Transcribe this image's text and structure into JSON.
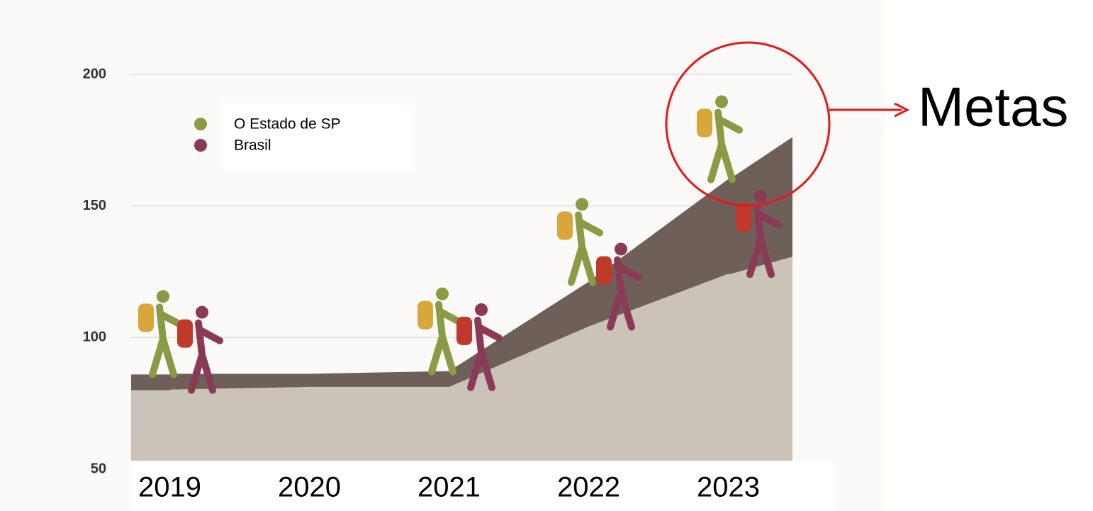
{
  "chart_data": {
    "type": "area",
    "categories": [
      "2019",
      "2020",
      "2021",
      "2022",
      "2023"
    ],
    "series": [
      {
        "name": "O Estado de SP",
        "color": "#8a9a45",
        "values": [
          86,
          86,
          87,
          121,
          160
        ]
      },
      {
        "name": "Brasil",
        "color": "#8b3a55",
        "values": [
          80,
          81,
          81,
          104,
          124
        ]
      }
    ],
    "ylim": [
      50,
      200
    ],
    "yticks": [
      50,
      100,
      150,
      200
    ],
    "grid": true,
    "annotation": "Metas"
  }
}
